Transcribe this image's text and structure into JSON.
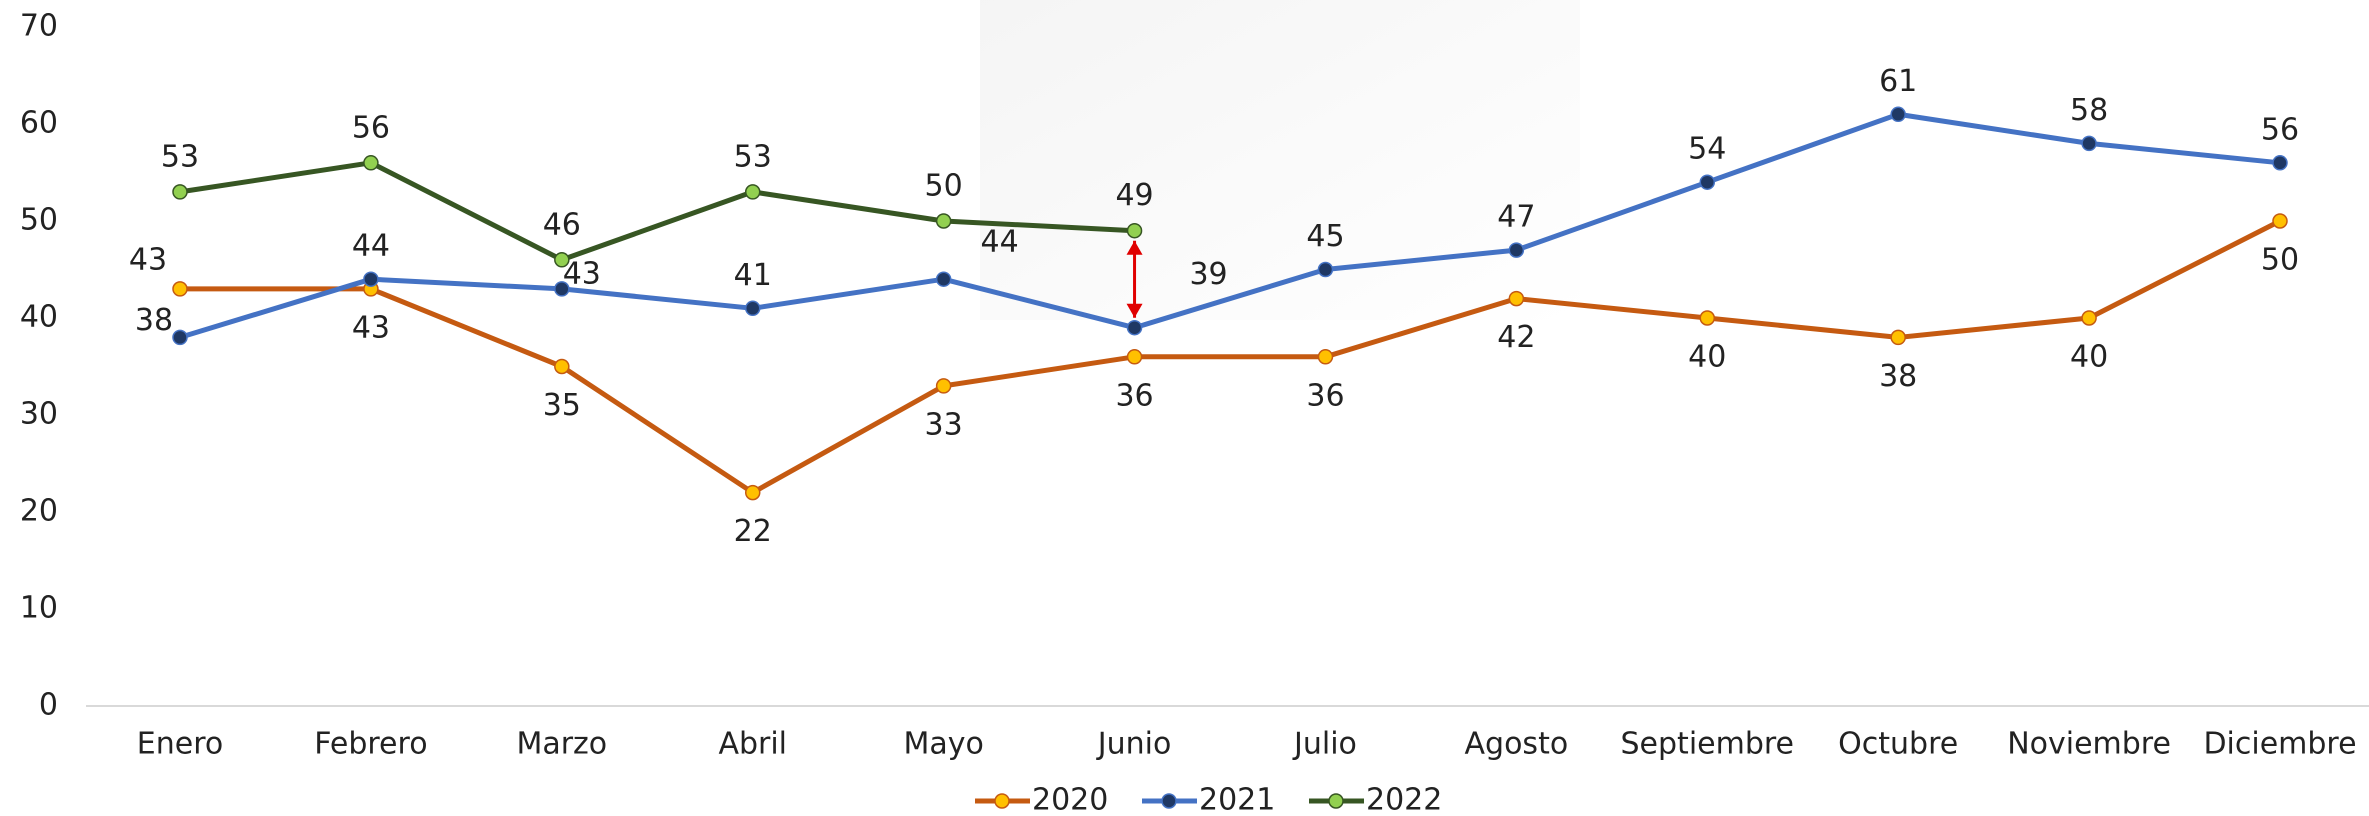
{
  "chart_data": {
    "type": "line",
    "categories": [
      "Enero",
      "Febrero",
      "Marzo",
      "Abril",
      "Mayo",
      "Junio",
      "Julio",
      "Agosto",
      "Septiembre",
      "Octubre",
      "Noviembre",
      "Diciembre"
    ],
    "series": [
      {
        "name": "2020",
        "color": "#c55a11",
        "marker_color": "#ffc000",
        "values": [
          43,
          43,
          35,
          22,
          33,
          36,
          36,
          42,
          40,
          38,
          40,
          50
        ]
      },
      {
        "name": "2021",
        "color": "#4472c4",
        "marker_color": "#1f3864",
        "values": [
          38,
          44,
          43,
          41,
          44,
          39,
          45,
          47,
          54,
          61,
          58,
          56
        ]
      },
      {
        "name": "2022",
        "color": "#375623",
        "marker_color": "#92d050",
        "values": [
          53,
          56,
          46,
          53,
          50,
          49,
          null,
          null,
          null,
          null,
          null,
          null
        ]
      }
    ],
    "ylim": [
      0,
      70
    ],
    "yticks": [
      0,
      10,
      20,
      30,
      40,
      50,
      60,
      70
    ],
    "grid": false,
    "legend": "bottom"
  }
}
